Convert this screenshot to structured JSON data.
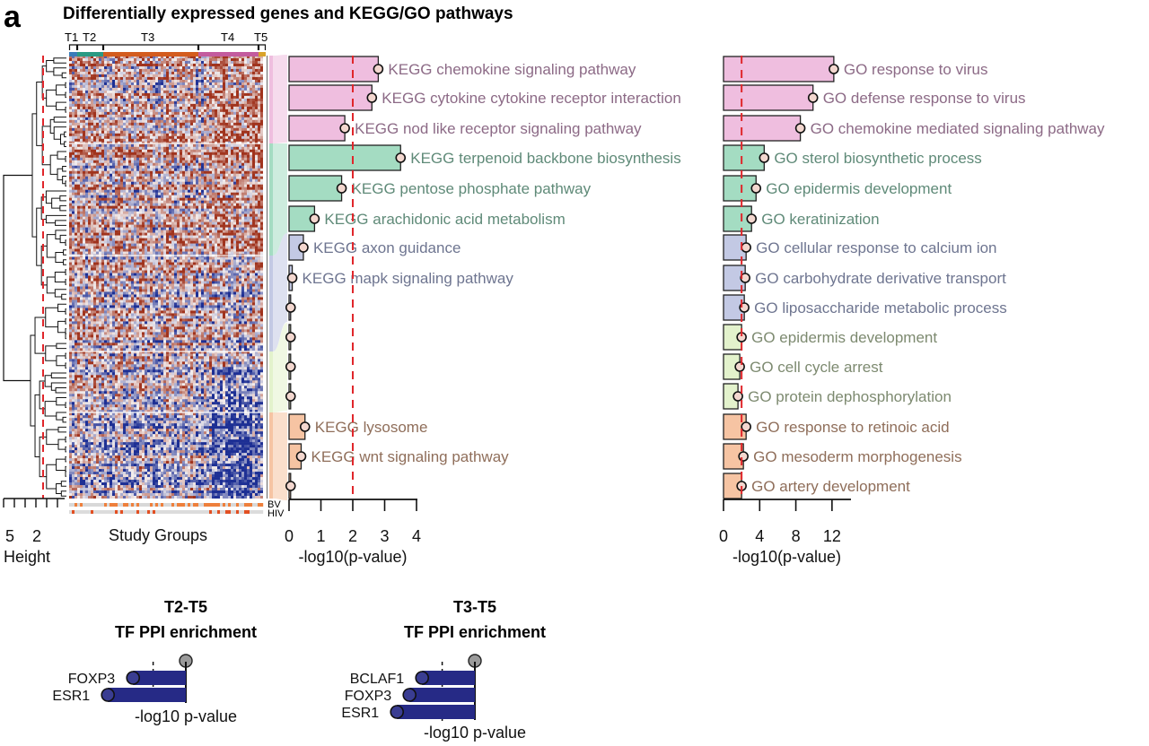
{
  "panel": {
    "letter": "a",
    "title": "Differentially expressed genes and KEGG/GO pathways"
  },
  "colors": {
    "pink": "#efbedf",
    "pink_text": "#8c6a86",
    "green": "#a4dcc2",
    "green_text": "#5f8a78",
    "blue": "#c3c9e4",
    "blue_text": "#6e7590",
    "lime": "#e3f2cc",
    "lime_text": "#7d8a70",
    "orange": "#f6c4a3",
    "orange_text": "#8f6e5a",
    "threshold": "#e0262b",
    "heat_red": "#a0331d",
    "heat_blue": "#1d2f94",
    "tf_bar": "#262a86"
  },
  "dendrogram": {
    "axis_label": "Height",
    "ticks": [
      "5",
      "2"
    ]
  },
  "heatmap": {
    "xlabel": "Study Groups",
    "groups": [
      {
        "label": "T1",
        "color": "#3a7bb8"
      },
      {
        "label": "T2",
        "color": "#2a9a83"
      },
      {
        "label": "T3",
        "color": "#d35c1e"
      },
      {
        "label": "T4",
        "color": "#c35b9e"
      },
      {
        "label": "T5",
        "color": "#d9a32b"
      }
    ],
    "row_labels": [
      "BV",
      "HIV"
    ]
  },
  "chart_data": [
    {
      "type": "bar",
      "orientation": "horizontal",
      "panel": "KEGG",
      "xlabel": "-log10(p-value)",
      "xlim": [
        0,
        4
      ],
      "xticks": [
        "0",
        "1",
        "2",
        "3",
        "4"
      ],
      "threshold": 2,
      "rows": [
        {
          "label": "KEGG chemokine signaling pathway",
          "value": 2.8,
          "cluster": "pink"
        },
        {
          "label": "KEGG cytokine cytokine receptor interaction",
          "value": 2.6,
          "cluster": "pink"
        },
        {
          "label": "KEGG nod like receptor signaling pathway",
          "value": 1.75,
          "cluster": "pink"
        },
        {
          "label": "KEGG terpenoid backbone biosynthesis",
          "value": 3.5,
          "cluster": "green"
        },
        {
          "label": "KEGG pentose phosphate pathway",
          "value": 1.65,
          "cluster": "green"
        },
        {
          "label": "KEGG arachidonic acid metabolism",
          "value": 0.8,
          "cluster": "green"
        },
        {
          "label": "KEGG axon guidance",
          "value": 0.45,
          "cluster": "blue"
        },
        {
          "label": "KEGG mapk signaling pathway",
          "value": 0.1,
          "cluster": "blue"
        },
        {
          "label": "",
          "value": 0.05,
          "cluster": "blue"
        },
        {
          "label": "",
          "value": 0.05,
          "cluster": "lime"
        },
        {
          "label": "",
          "value": 0.05,
          "cluster": "lime"
        },
        {
          "label": "",
          "value": 0.05,
          "cluster": "lime"
        },
        {
          "label": "KEGG lysosome",
          "value": 0.5,
          "cluster": "orange"
        },
        {
          "label": "KEGG wnt signaling pathway",
          "value": 0.38,
          "cluster": "orange"
        },
        {
          "label": "",
          "value": 0.05,
          "cluster": "orange"
        }
      ]
    },
    {
      "type": "bar",
      "orientation": "horizontal",
      "panel": "GO",
      "xlabel": "-log10(p-value)",
      "xlim": [
        0,
        14
      ],
      "xticks": [
        "0",
        "4",
        "8",
        "12"
      ],
      "threshold": 2,
      "rows": [
        {
          "label": "GO response to virus",
          "value": 12.2,
          "cluster": "pink"
        },
        {
          "label": "GO defense response to virus",
          "value": 9.9,
          "cluster": "pink"
        },
        {
          "label": "GO chemokine mediated signaling pathway",
          "value": 8.5,
          "cluster": "pink"
        },
        {
          "label": "GO sterol biosynthetic process",
          "value": 4.5,
          "cluster": "green"
        },
        {
          "label": "GO epidermis development",
          "value": 3.6,
          "cluster": "green"
        },
        {
          "label": "GO keratinization",
          "value": 3.1,
          "cluster": "green"
        },
        {
          "label": "GO cellular response to calcium ion",
          "value": 2.5,
          "cluster": "blue"
        },
        {
          "label": "GO carbohydrate derivative transport",
          "value": 2.4,
          "cluster": "blue"
        },
        {
          "label": "GO liposaccharide metabolic process",
          "value": 2.3,
          "cluster": "blue"
        },
        {
          "label": "GO epidermis development",
          "value": 2.0,
          "cluster": "lime"
        },
        {
          "label": "GO cell cycle arrest",
          "value": 1.8,
          "cluster": "lime"
        },
        {
          "label": "GO protein dephosphorylation",
          "value": 1.6,
          "cluster": "lime"
        },
        {
          "label": "GO response to retinoic acid",
          "value": 2.5,
          "cluster": "orange"
        },
        {
          "label": "GO mesoderm morphogenesis",
          "value": 2.2,
          "cluster": "orange"
        },
        {
          "label": "GO artery development",
          "value": 2.0,
          "cluster": "orange"
        }
      ]
    },
    {
      "type": "bar",
      "orientation": "horizontal",
      "panel": "TF-T2-T5",
      "title": "T2-T5\nTF PPI enrichment",
      "xlabel": "-log10 p-value",
      "xlim": [
        0,
        3.2
      ],
      "threshold": 1.3,
      "reference": "grey dot",
      "rows": [
        {
          "label": "FOXP3",
          "value": 2.1
        },
        {
          "label": "ESR1",
          "value": 3.1
        }
      ]
    },
    {
      "type": "bar",
      "orientation": "horizontal",
      "panel": "TF-T3-T5",
      "title": "T3-T5\nTF PPI enrichment",
      "xlabel": "-log10 p-value",
      "xlim": [
        0,
        3.2
      ],
      "threshold": 1.3,
      "reference": "grey dot",
      "rows": [
        {
          "label": "BCLAF1",
          "value": 2.1
        },
        {
          "label": "FOXP3",
          "value": 2.6
        },
        {
          "label": "ESR1",
          "value": 3.1
        }
      ]
    }
  ],
  "tf_panels": [
    {
      "title_line1": "T2-T5",
      "title_line2": "TF PPI enrichment",
      "xlabel": "-log10 p-value"
    },
    {
      "title_line1": "T3-T5",
      "title_line2": "TF PPI enrichment",
      "xlabel": "-log10 p-value"
    }
  ]
}
